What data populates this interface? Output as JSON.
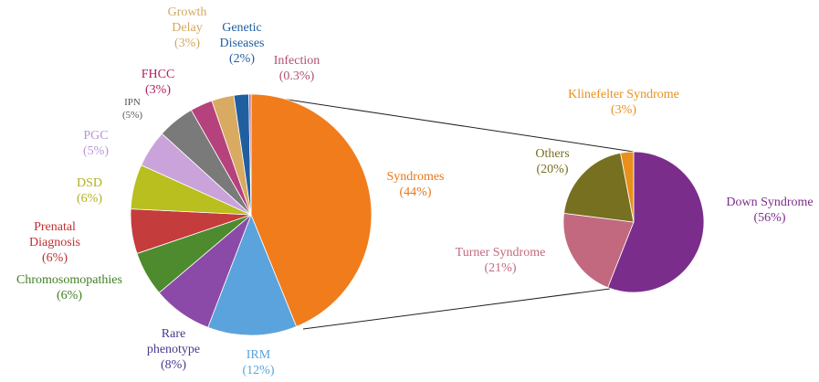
{
  "chart_data": [
    {
      "type": "pie",
      "categories": [
        "Syndromes",
        "IRM",
        "Rare phenotype",
        "Chromosomopathies",
        "Prenatal Diagnosis",
        "DSD",
        "PGC",
        "IPN",
        "FHCC",
        "Growth Delay",
        "Genetic Diseases",
        "Infection"
      ],
      "values": [
        44,
        12,
        8,
        6,
        6,
        6,
        5,
        5,
        3,
        3,
        2,
        0.3
      ],
      "value_labels": [
        "(44%)",
        "(12%)",
        "(8%)",
        "(6%)",
        "(6%)",
        "(6%)",
        "(5%)",
        "(5%)",
        "(3%)",
        "(3%)",
        "(2%)",
        "(0.3%)"
      ],
      "colors": [
        "#f07c1c",
        "#5ba3dc",
        "#8c4aa8",
        "#4e8a2e",
        "#c43c3c",
        "#b8bf1e",
        "#c9a3d9",
        "#7a7a7a",
        "#b5427c",
        "#d9aa62",
        "#1f5fa0",
        "#c46a7a"
      ]
    },
    {
      "type": "pie",
      "categories": [
        "Down Syndrome",
        "Turner Syndrome",
        "Others",
        "Klinefelter Syndrome"
      ],
      "values": [
        56,
        21,
        20,
        3
      ],
      "value_labels": [
        "(56%)",
        "(21%)",
        "(20%)",
        "(3%)"
      ],
      "colors": [
        "#7b2d8b",
        "#c2697f",
        "#767020",
        "#e8901c"
      ]
    }
  ]
}
